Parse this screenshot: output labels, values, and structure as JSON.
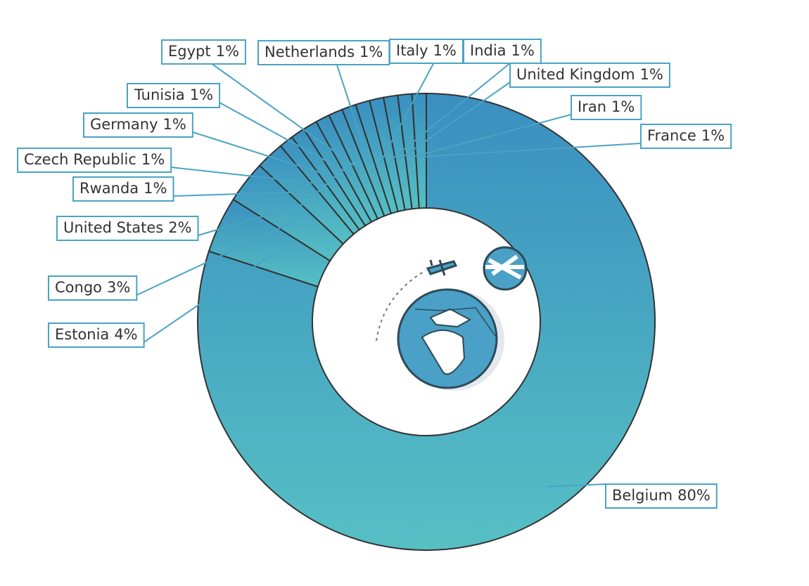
{
  "chart_data": {
    "type": "donut",
    "categories": [
      "Belgium",
      "Estonia",
      "Congo",
      "United States",
      "Rwanda",
      "Czech Republic",
      "Germany",
      "Tunisia",
      "Egypt",
      "Netherlands",
      "Italy",
      "India",
      "United Kingdom",
      "Iran",
      "France"
    ],
    "values": [
      80,
      4,
      3,
      2,
      1,
      1,
      1,
      1,
      1,
      1,
      1,
      1,
      1,
      1,
      1
    ],
    "value_labels": [
      "80%",
      "4%",
      "3%",
      "2%",
      "1%",
      "1%",
      "1%",
      "1%",
      "1%",
      "1%",
      "1%",
      "1%",
      "1%",
      "1%",
      "1%"
    ],
    "colors": [
      "#3a8fc0",
      "#56c0c4"
    ]
  }
}
